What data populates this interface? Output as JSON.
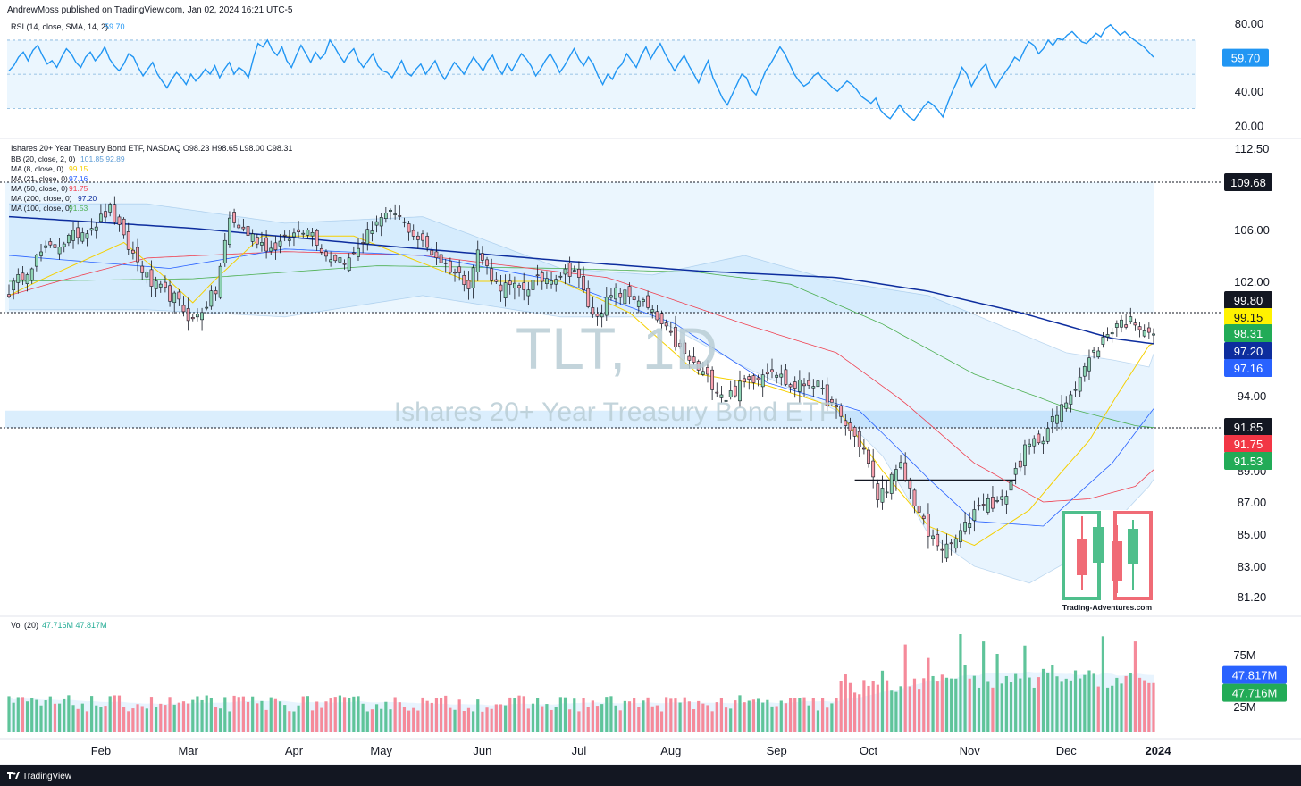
{
  "header": {
    "publisher": "AndrewMoss published on TradingView.com, Jan 02, 2024 16:21 UTC-5"
  },
  "footer": {
    "brand": "TradingView"
  },
  "watermark": {
    "symbol": "TLT, 1D",
    "name": "Ishares 20+ Year Treasury Bond ETF"
  },
  "logo": {
    "text": "Trading-Adventures.com"
  },
  "colors": {
    "up": "#22ab94",
    "down": "#f23645",
    "up_fill": "#8fd5b5",
    "down_fill": "#f7a0ad",
    "rsi": "#2196f3",
    "bb": "#5b9bd5",
    "ma8": "#f5d000",
    "ma21": "#2962ff",
    "ma50": "#f04050",
    "ma200": "#0d2d9e",
    "ma100": "#4caf50"
  },
  "chart_data": [
    {
      "type": "line",
      "name": "rsi-panel",
      "legend": "RSI (14, close, SMA, 14, 2)",
      "legend_value": "59.70",
      "ylim": [
        15,
        82
      ],
      "y_ticks": [
        "80.00",
        "40.00",
        "20.00"
      ],
      "bands": [
        30,
        70,
        50
      ],
      "last_value_label": "59.70",
      "values": [
        52,
        55,
        60,
        63,
        58,
        64,
        67,
        61,
        56,
        58,
        54,
        60,
        65,
        62,
        57,
        54,
        60,
        63,
        58,
        61,
        66,
        59,
        55,
        52,
        56,
        62,
        60,
        54,
        49,
        53,
        57,
        50,
        46,
        42,
        47,
        51,
        48,
        44,
        50,
        46,
        49,
        53,
        50,
        55,
        48,
        53,
        57,
        50,
        54,
        52,
        48,
        59,
        68,
        66,
        70,
        64,
        61,
        66,
        58,
        54,
        61,
        67,
        62,
        57,
        63,
        59,
        62,
        70,
        66,
        61,
        57,
        62,
        65,
        58,
        54,
        58,
        62,
        55,
        52,
        51,
        48,
        53,
        58,
        51,
        49,
        53,
        56,
        50,
        54,
        58,
        51,
        47,
        52,
        57,
        54,
        50,
        55,
        60,
        56,
        52,
        58,
        61,
        54,
        50,
        56,
        52,
        57,
        62,
        59,
        55,
        49,
        53,
        58,
        62,
        57,
        51,
        55,
        60,
        65,
        59,
        55,
        60,
        56,
        49,
        44,
        50,
        47,
        53,
        56,
        62,
        58,
        54,
        61,
        66,
        59,
        64,
        68,
        62,
        57,
        52,
        57,
        61,
        55,
        50,
        45,
        52,
        58,
        48,
        42,
        36,
        32,
        38,
        44,
        50,
        48,
        41,
        38,
        45,
        52,
        56,
        61,
        66,
        62,
        56,
        50,
        46,
        43,
        45,
        49,
        51,
        47,
        45,
        42,
        40,
        43,
        46,
        44,
        41,
        37,
        35,
        33,
        36,
        29,
        26,
        24,
        28,
        32,
        28,
        25,
        23,
        27,
        31,
        34,
        32,
        29,
        25,
        33,
        40,
        46,
        54,
        50,
        43,
        48,
        53,
        56,
        47,
        42,
        47,
        51,
        55,
        60,
        58,
        64,
        69,
        67,
        62,
        65,
        70,
        67,
        71,
        70,
        73,
        75,
        72,
        69,
        68,
        71,
        74,
        72,
        77,
        79,
        76,
        73,
        75,
        72,
        70,
        68,
        66,
        63,
        60
      ]
    },
    {
      "type": "candlestick",
      "name": "price-panel",
      "legend_title": "Ishares 20+ Year Treasury Bond ETF, NASDAQ  O98.23  H98.65  L98.00  C98.31",
      "indicators": [
        {
          "label": "BB (20, close, 2, 0)",
          "values": "101.85  92.89"
        },
        {
          "label": "MA (8, close, 0)",
          "values": "99.15"
        },
        {
          "label": "MA (21, close, 0)",
          "values": "97.16"
        },
        {
          "label": "MA (50, close, 0)",
          "values": "91.75"
        },
        {
          "label": "MA (200, close, 0)",
          "values": "97.20"
        },
        {
          "label": "MA (100, close, 0)",
          "values": "91.53"
        }
      ],
      "ylim": [
        80,
        113
      ],
      "y_ticks": [
        "112.50",
        "106.00",
        "102.00",
        "94.00",
        "89.00",
        "87.00",
        "85.00",
        "83.00",
        "81.20"
      ],
      "x_ticks": [
        "Feb",
        "Mar",
        "Apr",
        "May",
        "Jun",
        "Jul",
        "Aug",
        "Sep",
        "Oct",
        "Nov",
        "Dec",
        "2024"
      ],
      "horizontal_lines": [
        109.68,
        99.8,
        91.85
      ],
      "support_line": 88.4,
      "zones": [
        [
          99.8,
          109.68
        ],
        [
          91.85,
          93.0
        ]
      ],
      "price_labels": [
        {
          "text": "109.68",
          "kind": "black"
        },
        {
          "text": "99.80",
          "kind": "black"
        },
        {
          "text": "99.15",
          "kind": "yellow"
        },
        {
          "text": "98.31",
          "kind": "green"
        },
        {
          "text": "97.20",
          "kind": "navy"
        },
        {
          "text": "97.16",
          "kind": "blue"
        },
        {
          "text": "91.85",
          "kind": "black"
        },
        {
          "text": "91.75",
          "kind": "red"
        },
        {
          "text": "91.53",
          "kind": "green"
        }
      ],
      "close_anchors": [
        [
          "2023-01-03",
          101.3
        ],
        [
          "2023-01-12",
          104.2
        ],
        [
          "2023-01-20",
          105.1
        ],
        [
          "2023-01-31",
          106.5
        ],
        [
          "2023-02-03",
          107.6
        ],
        [
          "2023-02-08",
          105.2
        ],
        [
          "2023-02-16",
          101.8
        ],
        [
          "2023-02-24",
          100.8
        ],
        [
          "2023-03-02",
          99.2
        ],
        [
          "2023-03-09",
          101.3
        ],
        [
          "2023-03-14",
          106.8
        ],
        [
          "2023-03-20",
          105.7
        ],
        [
          "2023-03-27",
          104.5
        ],
        [
          "2023-04-06",
          106.3
        ],
        [
          "2023-04-13",
          104.0
        ],
        [
          "2023-04-20",
          103.6
        ],
        [
          "2023-04-28",
          106.7
        ],
        [
          "2023-05-04",
          107.2
        ],
        [
          "2023-05-12",
          104.9
        ],
        [
          "2023-05-19",
          103.3
        ],
        [
          "2023-05-26",
          101.9
        ],
        [
          "2023-05-31",
          104.3
        ],
        [
          "2023-06-06",
          101.8
        ],
        [
          "2023-06-13",
          101.4
        ],
        [
          "2023-06-22",
          102.3
        ],
        [
          "2023-06-30",
          102.9
        ],
        [
          "2023-07-07",
          99.5
        ],
        [
          "2023-07-14",
          101.2
        ],
        [
          "2023-07-21",
          100.8
        ],
        [
          "2023-07-28",
          98.9
        ],
        [
          "2023-08-04",
          96.8
        ],
        [
          "2023-08-10",
          95.5
        ],
        [
          "2023-08-17",
          93.9
        ],
        [
          "2023-08-24",
          95.1
        ],
        [
          "2023-08-31",
          96.0
        ],
        [
          "2023-09-07",
          94.6
        ],
        [
          "2023-09-14",
          95.0
        ],
        [
          "2023-09-21",
          92.9
        ],
        [
          "2023-09-29",
          90.4
        ],
        [
          "2023-10-04",
          87.3
        ],
        [
          "2023-10-11",
          89.2
        ],
        [
          "2023-10-19",
          84.9
        ],
        [
          "2023-10-25",
          84.0
        ],
        [
          "2023-10-31",
          85.4
        ],
        [
          "2023-11-03",
          87.0
        ],
        [
          "2023-11-10",
          87.0
        ],
        [
          "2023-11-17",
          90.3
        ],
        [
          "2023-11-24",
          91.4
        ],
        [
          "2023-11-30",
          93.1
        ],
        [
          "2023-12-07",
          96.0
        ],
        [
          "2023-12-13",
          97.9
        ],
        [
          "2023-12-18",
          99.1
        ],
        [
          "2023-12-22",
          99.2
        ],
        [
          "2023-12-29",
          98.31
        ]
      ],
      "bb_upper": [
        [
          0,
          108
        ],
        [
          30,
          108
        ],
        [
          60,
          106.5
        ],
        [
          90,
          107
        ],
        [
          120,
          103
        ],
        [
          140,
          102.5
        ],
        [
          160,
          104
        ],
        [
          180,
          102
        ],
        [
          200,
          101
        ],
        [
          215,
          99
        ],
        [
          230,
          97
        ],
        [
          240,
          96.5
        ],
        [
          248,
          96
        ],
        [
          254,
          101.5
        ],
        [
          259,
          101.85
        ]
      ],
      "bb_lower": [
        [
          0,
          100
        ],
        [
          30,
          100
        ],
        [
          60,
          99.5
        ],
        [
          90,
          101
        ],
        [
          120,
          99.5
        ],
        [
          140,
          99.5
        ],
        [
          160,
          96
        ],
        [
          180,
          93
        ],
        [
          190,
          90
        ],
        [
          200,
          85
        ],
        [
          210,
          83
        ],
        [
          222,
          82
        ],
        [
          235,
          84
        ],
        [
          248,
          88
        ],
        [
          259,
          92.89
        ]
      ],
      "ma8": [
        [
          0,
          101
        ],
        [
          25,
          105
        ],
        [
          40,
          100.5
        ],
        [
          55,
          105.5
        ],
        [
          75,
          105.5
        ],
        [
          100,
          102
        ],
        [
          120,
          102
        ],
        [
          135,
          99.8
        ],
        [
          150,
          95.5
        ],
        [
          165,
          94.7
        ],
        [
          180,
          93.2
        ],
        [
          190,
          89
        ],
        [
          200,
          85.5
        ],
        [
          210,
          84.3
        ],
        [
          222,
          86.5
        ],
        [
          235,
          91
        ],
        [
          248,
          97.5
        ],
        [
          259,
          99.15
        ]
      ],
      "ma21": [
        [
          0,
          104
        ],
        [
          35,
          103
        ],
        [
          60,
          104.5
        ],
        [
          90,
          104
        ],
        [
          120,
          102
        ],
        [
          145,
          99
        ],
        [
          165,
          94.9
        ],
        [
          185,
          93
        ],
        [
          200,
          88.5
        ],
        [
          210,
          85.8
        ],
        [
          225,
          85.5
        ],
        [
          240,
          89.5
        ],
        [
          259,
          97.16
        ]
      ],
      "ma50": [
        [
          0,
          101
        ],
        [
          30,
          103.8
        ],
        [
          60,
          104.3
        ],
        [
          90,
          104
        ],
        [
          130,
          102.3
        ],
        [
          160,
          99
        ],
        [
          180,
          97
        ],
        [
          195,
          93.5
        ],
        [
          210,
          89.5
        ],
        [
          225,
          87
        ],
        [
          235,
          87.2
        ],
        [
          245,
          88
        ],
        [
          259,
          91.75
        ]
      ],
      "ma200": [
        [
          0,
          107
        ],
        [
          40,
          106.1
        ],
        [
          80,
          104.8
        ],
        [
          120,
          103.6
        ],
        [
          150,
          102.8
        ],
        [
          180,
          102.3
        ],
        [
          200,
          101.3
        ],
        [
          220,
          99.8
        ],
        [
          240,
          98
        ],
        [
          259,
          97.2
        ]
      ],
      "ma100": [
        [
          0,
          102
        ],
        [
          40,
          102.2
        ],
        [
          80,
          103.2
        ],
        [
          120,
          103
        ],
        [
          150,
          102.7
        ],
        [
          170,
          101.8
        ],
        [
          190,
          99
        ],
        [
          210,
          95.5
        ],
        [
          230,
          93.2
        ],
        [
          245,
          92
        ],
        [
          259,
          91.53
        ]
      ]
    },
    {
      "type": "bar",
      "name": "volume-panel",
      "legend": "Vol (20)",
      "legend_values": "47.716M  47.817M",
      "ylim": [
        0,
        95
      ],
      "y_ticks": [
        "75M",
        "25M"
      ],
      "last_value_labels": [
        {
          "text": "47.817M",
          "kind": "blue"
        },
        {
          "text": "47.716M",
          "kind": "green"
        }
      ],
      "ma20_value": 47.817,
      "last_value": 47.716,
      "spikes": [
        [
          195,
          85
        ],
        [
          200,
          72
        ],
        [
          207,
          95
        ],
        [
          212,
          88
        ],
        [
          227,
          65
        ],
        [
          238,
          93
        ],
        [
          245,
          88
        ],
        [
          250,
          62
        ],
        [
          255,
          78
        ],
        [
          215,
          76
        ],
        [
          221,
          84
        ],
        [
          232,
          60
        ]
      ]
    }
  ]
}
